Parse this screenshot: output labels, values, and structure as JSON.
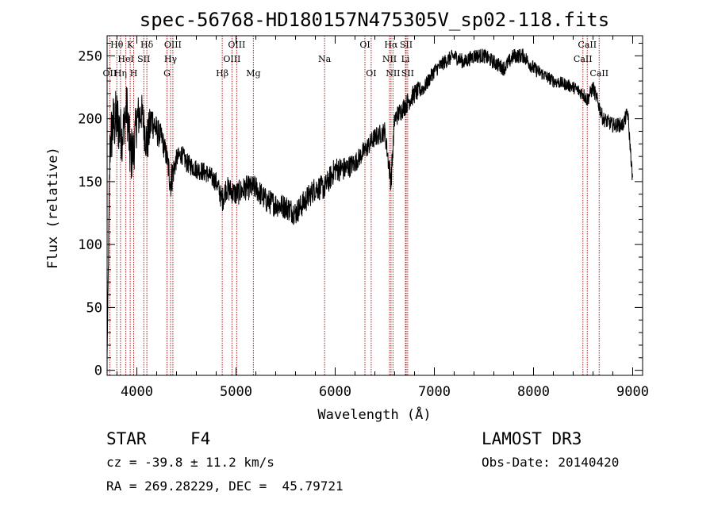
{
  "title": "spec-56768-HD180157N475305V_sp02-118.fits",
  "footer": {
    "obj_class": "STAR",
    "subclass": "F4",
    "cz": "cz = -39.8 ± 11.2 km/s",
    "coords": "RA = 269.28229, DEC =  45.79721",
    "survey": "LAMOST DR3",
    "obs_date": "Obs-Date: 20140420"
  },
  "colors": {
    "spectrum": "#000000",
    "lines": "#b22222",
    "axis": "#000000"
  },
  "chart_data": {
    "type": "line",
    "title": "spec-56768-HD180157N475305V_sp02-118.fits",
    "xlabel": "Wavelength (Å)",
    "ylabel": "Flux (relative)",
    "xlim": [
      3700,
      9100
    ],
    "ylim": [
      -4,
      266
    ],
    "xticks": [
      4000,
      5000,
      6000,
      7000,
      8000,
      9000
    ],
    "yticks": [
      0,
      50,
      100,
      150,
      200,
      250
    ],
    "spectrum": {
      "name": "flux",
      "x": [
        3700,
        3730,
        3760,
        3800,
        3850,
        3900,
        3933,
        3968,
        4000,
        4050,
        4101,
        4150,
        4200,
        4250,
        4300,
        4340,
        4400,
        4450,
        4500,
        4600,
        4700,
        4800,
        4861,
        4900,
        5000,
        5100,
        5200,
        5300,
        5400,
        5500,
        5600,
        5700,
        5800,
        5893,
        6000,
        6100,
        6200,
        6300,
        6400,
        6500,
        6563,
        6600,
        6700,
        6800,
        6900,
        7000,
        7100,
        7200,
        7300,
        7400,
        7500,
        7600,
        7700,
        7800,
        7900,
        8000,
        8100,
        8200,
        8300,
        8400,
        8498,
        8542,
        8600,
        8662,
        8700,
        8800,
        8900,
        8950,
        9000
      ],
      "y": [
        10,
        180,
        195,
        200,
        185,
        210,
        170,
        175,
        200,
        205,
        180,
        200,
        190,
        185,
        170,
        150,
        168,
        172,
        165,
        160,
        157,
        150,
        135,
        145,
        140,
        145,
        145,
        135,
        132,
        130,
        125,
        135,
        145,
        145,
        160,
        160,
        165,
        175,
        185,
        190,
        150,
        200,
        210,
        220,
        225,
        238,
        245,
        250,
        245,
        250,
        250,
        245,
        240,
        250,
        250,
        240,
        235,
        230,
        228,
        225,
        220,
        215,
        225,
        210,
        200,
        195,
        195,
        205,
        150
      ],
      "noise": [
        0,
        25,
        25,
        25,
        20,
        20,
        25,
        20,
        20,
        15,
        20,
        15,
        12,
        10,
        10,
        15,
        8,
        8,
        8,
        8,
        8,
        8,
        10,
        10,
        10,
        10,
        10,
        10,
        10,
        10,
        10,
        10,
        10,
        10,
        10,
        10,
        8,
        8,
        8,
        8,
        10,
        8,
        8,
        8,
        6,
        6,
        6,
        6,
        6,
        6,
        6,
        6,
        6,
        6,
        6,
        6,
        5,
        5,
        5,
        5,
        6,
        6,
        6,
        6,
        6,
        6,
        6,
        6,
        5
      ]
    },
    "spectral_lines": [
      {
        "label": "OII",
        "wavelength": 3727,
        "row": 2
      },
      {
        "label": "Hθ",
        "wavelength": 3798,
        "row": 0
      },
      {
        "label": "Hη",
        "wavelength": 3835,
        "row": 2
      },
      {
        "label": "HeI",
        "wavelength": 3889,
        "row": 1
      },
      {
        "label": "K",
        "wavelength": 3933,
        "row": 0
      },
      {
        "label": "H",
        "wavelength": 3968,
        "row": 2
      },
      {
        "label": "SII",
        "wavelength": 4070,
        "row": 1
      },
      {
        "label": "Hδ",
        "wavelength": 4101,
        "row": 0
      },
      {
        "label": "G",
        "wavelength": 4304,
        "row": 2
      },
      {
        "label": "Hγ",
        "wavelength": 4340,
        "row": 1
      },
      {
        "label": "OIII",
        "wavelength": 4363,
        "row": 0
      },
      {
        "label": "Hβ",
        "wavelength": 4861,
        "row": 2
      },
      {
        "label": "OIII",
        "wavelength": 4959,
        "row": 1
      },
      {
        "label": "OIII",
        "wavelength": 5007,
        "row": 0
      },
      {
        "label": "Mg",
        "wavelength": 5175,
        "row": 2
      },
      {
        "label": "Na",
        "wavelength": 5893,
        "row": 1
      },
      {
        "label": "OI",
        "wavelength": 6300,
        "row": 0
      },
      {
        "label": "OI",
        "wavelength": 6363,
        "row": 2
      },
      {
        "label": "NII",
        "wavelength": 6548,
        "row": 1
      },
      {
        "label": "Hα",
        "wavelength": 6563,
        "row": 0
      },
      {
        "label": "NII",
        "wavelength": 6583,
        "row": 2
      },
      {
        "label": "Li",
        "wavelength": 6708,
        "row": 1
      },
      {
        "label": "SII",
        "wavelength": 6716,
        "row": 0
      },
      {
        "label": "SII",
        "wavelength": 6731,
        "row": 2
      },
      {
        "label": "CaII",
        "wavelength": 8498,
        "row": 1
      },
      {
        "label": "CaII",
        "wavelength": 8542,
        "row": 0
      },
      {
        "label": "CaII",
        "wavelength": 8662,
        "row": 2
      }
    ]
  }
}
